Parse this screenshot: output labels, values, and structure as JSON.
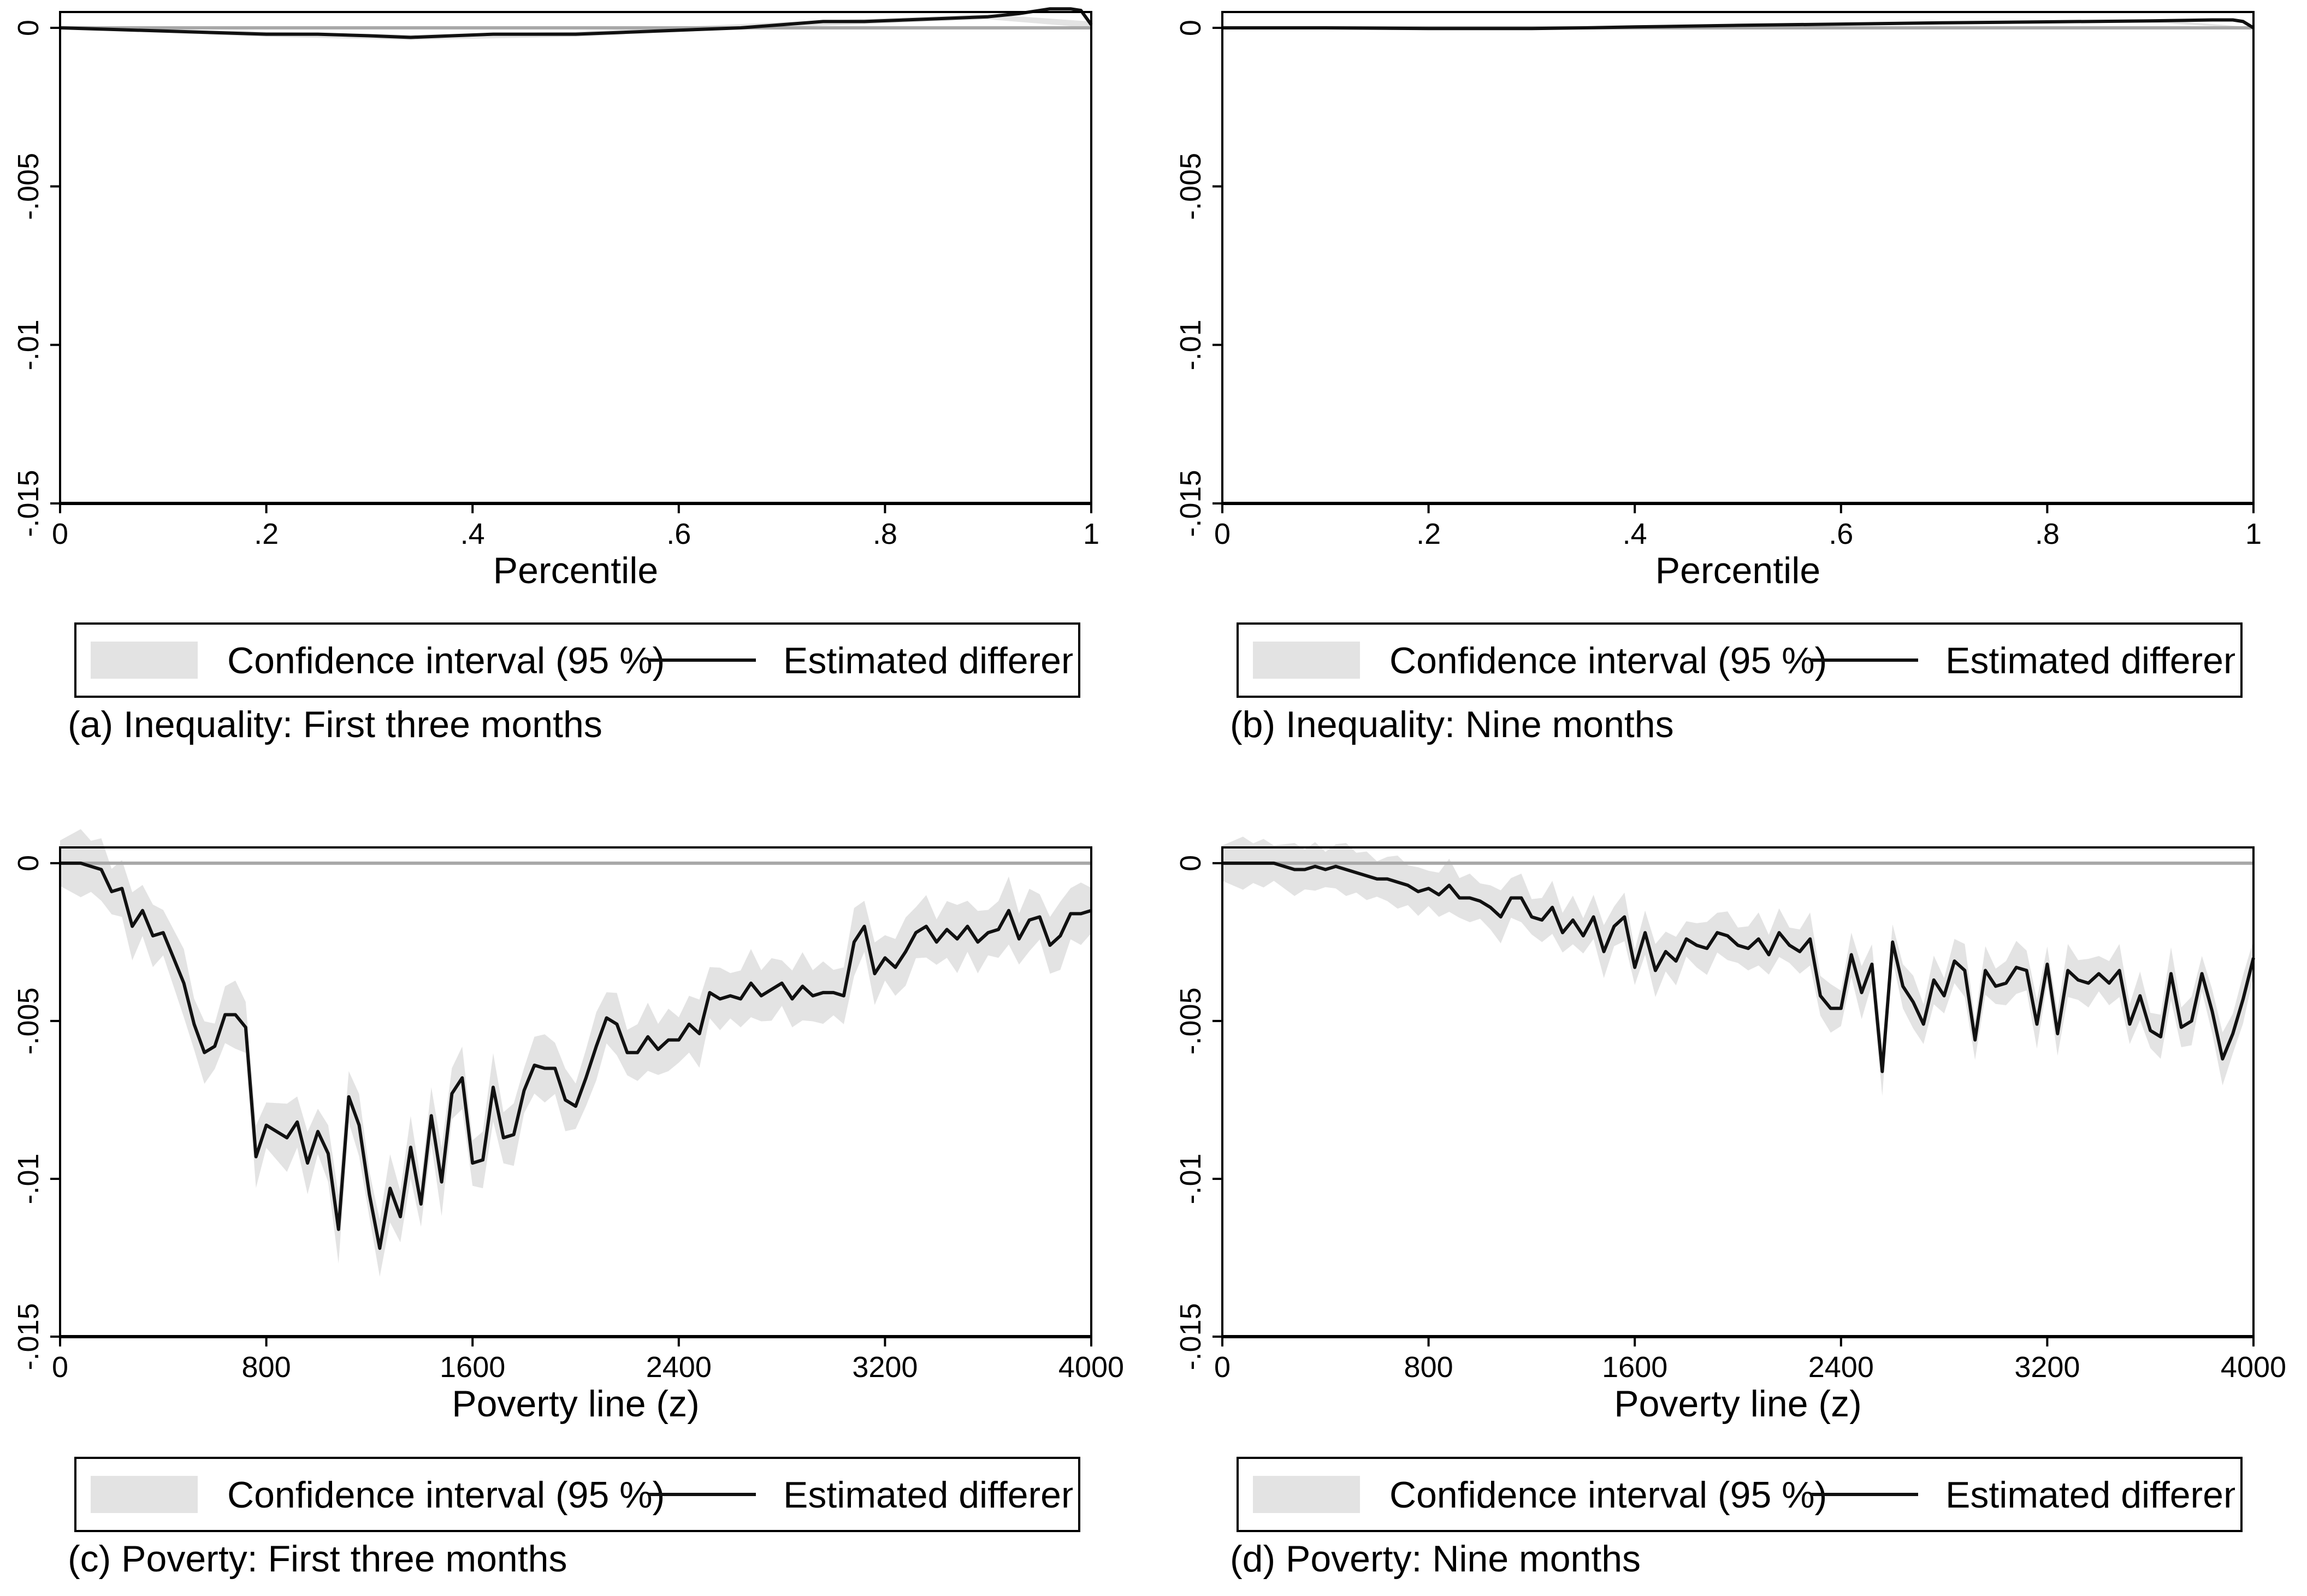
{
  "legend": {
    "ci_label": "Confidence interval (95 %)",
    "line_label": "Estimated difference"
  },
  "chart_data": [
    {
      "id": "a",
      "type": "line",
      "caption": "(a) Inequality: First three months",
      "xlabel": "Percentile",
      "ylabel": "",
      "xlim": [
        0,
        1
      ],
      "ylim": [
        -0.015,
        0.0005
      ],
      "x_ticks": [
        0,
        0.2,
        0.4,
        0.6,
        0.8,
        1
      ],
      "x_tick_labels": [
        "0",
        ".2",
        ".4",
        ".6",
        ".8",
        "1"
      ],
      "y_ticks": [
        0,
        -0.005,
        -0.01,
        -0.015
      ],
      "y_tick_labels": [
        "0",
        "-.005",
        "-.01",
        "-.015"
      ],
      "reference_line": 0,
      "series": [
        {
          "role": "estimate",
          "x": [
            0,
            0.05,
            0.1,
            0.15,
            0.2,
            0.25,
            0.3,
            0.34,
            0.38,
            0.42,
            0.46,
            0.5,
            0.54,
            0.58,
            0.62,
            0.66,
            0.7,
            0.74,
            0.78,
            0.82,
            0.86,
            0.9,
            0.93,
            0.96,
            0.98,
            0.99,
            1.0
          ],
          "y": [
            0,
            -5e-05,
            -0.0001,
            -0.00015,
            -0.0002,
            -0.0002,
            -0.00025,
            -0.0003,
            -0.00025,
            -0.0002,
            -0.0002,
            -0.0002,
            -0.00015,
            -0.0001,
            -5e-05,
            0,
            0.0001,
            0.0002,
            0.0002,
            0.00025,
            0.0003,
            0.00035,
            0.00045,
            0.0006,
            0.0006,
            0.00055,
            0.0001
          ]
        }
      ],
      "ci": {
        "x": [
          0,
          0.2,
          0.34,
          0.5,
          0.7,
          0.9,
          1.0
        ],
        "lower": [
          -3e-05,
          -0.00028,
          -0.00038,
          -0.00028,
          2e-05,
          0.00027,
          0.0
        ],
        "upper": [
          3e-05,
          -0.00012,
          -0.00022,
          -0.00012,
          0.00018,
          0.00043,
          0.0002
        ]
      }
    },
    {
      "id": "b",
      "type": "line",
      "caption": "(b) Inequality: Nine months",
      "xlabel": "Percentile",
      "ylabel": "",
      "xlim": [
        0,
        1
      ],
      "ylim": [
        -0.015,
        0.0005
      ],
      "x_ticks": [
        0,
        0.2,
        0.4,
        0.6,
        0.8,
        1
      ],
      "x_tick_labels": [
        "0",
        ".2",
        ".4",
        ".6",
        ".8",
        "1"
      ],
      "y_ticks": [
        0,
        -0.005,
        -0.01,
        -0.015
      ],
      "y_tick_labels": [
        "0",
        "-.005",
        "-.01",
        "-.015"
      ],
      "reference_line": 0,
      "series": [
        {
          "role": "estimate",
          "x": [
            0,
            0.1,
            0.2,
            0.3,
            0.35,
            0.4,
            0.5,
            0.6,
            0.7,
            0.8,
            0.9,
            0.96,
            0.98,
            0.99,
            1.0
          ],
          "y": [
            0,
            0,
            -2e-05,
            -2e-05,
            0,
            3e-05,
            8e-05,
            0.00012,
            0.00016,
            0.00019,
            0.00022,
            0.00025,
            0.00025,
            0.0002,
            0.0
          ]
        }
      ],
      "ci": {
        "x": [
          0,
          0.3,
          0.6,
          0.9,
          1.0
        ],
        "lower": [
          -2e-05,
          -5e-05,
          8e-05,
          0.00017,
          -2e-05
        ],
        "upper": [
          2e-05,
          1e-05,
          0.00016,
          0.00027,
          2e-05
        ]
      }
    },
    {
      "id": "c",
      "type": "line",
      "caption": "(c) Poverty: First three months",
      "xlabel": "Poverty line (z)",
      "ylabel": "",
      "xlim": [
        0,
        4000
      ],
      "ylim": [
        -0.015,
        0.0005
      ],
      "x_ticks": [
        0,
        800,
        1600,
        2400,
        3200,
        4000
      ],
      "x_tick_labels": [
        "0",
        "800",
        "1600",
        "2400",
        "3200",
        "4000"
      ],
      "y_ticks": [
        0,
        -0.005,
        -0.01,
        -0.015
      ],
      "y_tick_labels": [
        "0",
        "-.005",
        "-.01",
        "-.015"
      ],
      "reference_line": 0,
      "series": [
        {
          "role": "estimate",
          "x": [
            0,
            40,
            80,
            120,
            160,
            200,
            240,
            280,
            320,
            360,
            400,
            440,
            480,
            520,
            560,
            600,
            640,
            680,
            720,
            760,
            800,
            840,
            880,
            920,
            960,
            1000,
            1040,
            1080,
            1120,
            1160,
            1200,
            1240,
            1280,
            1320,
            1360,
            1400,
            1440,
            1480,
            1520,
            1560,
            1600,
            1640,
            1680,
            1720,
            1760,
            1800,
            1840,
            1880,
            1920,
            1960,
            2000,
            2040,
            2080,
            2120,
            2160,
            2200,
            2240,
            2280,
            2320,
            2360,
            2400,
            2440,
            2480,
            2520,
            2560,
            2600,
            2640,
            2680,
            2720,
            2760,
            2800,
            2840,
            2880,
            2920,
            2960,
            3000,
            3040,
            3080,
            3120,
            3160,
            3200,
            3240,
            3280,
            3320,
            3360,
            3400,
            3440,
            3480,
            3520,
            3560,
            3600,
            3640,
            3680,
            3720,
            3760,
            3800,
            3840,
            3880,
            3920,
            3960,
            4000
          ],
          "y": [
            0,
            0,
            0,
            -0.0001,
            -0.0002,
            -0.0009,
            -0.0008,
            -0.002,
            -0.0015,
            -0.0023,
            -0.0022,
            -0.003,
            -0.0038,
            -0.0051,
            -0.006,
            -0.0058,
            -0.0048,
            -0.0048,
            -0.0052,
            -0.0093,
            -0.0083,
            -0.0085,
            -0.0087,
            -0.0082,
            -0.0095,
            -0.0085,
            -0.0092,
            -0.0116,
            -0.0074,
            -0.0083,
            -0.0105,
            -0.0122,
            -0.0103,
            -0.0112,
            -0.009,
            -0.0108,
            -0.008,
            -0.0101,
            -0.0073,
            -0.0068,
            -0.0095,
            -0.0094,
            -0.0071,
            -0.0087,
            -0.0086,
            -0.0072,
            -0.0064,
            -0.0065,
            -0.0065,
            -0.0075,
            -0.0077,
            -0.0068,
            -0.0058,
            -0.0049,
            -0.0051,
            -0.006,
            -0.006,
            -0.0055,
            -0.0059,
            -0.0056,
            -0.0056,
            -0.0051,
            -0.0054,
            -0.0041,
            -0.0043,
            -0.0042,
            -0.0043,
            -0.0038,
            -0.0042,
            -0.004,
            -0.0038,
            -0.0043,
            -0.0039,
            -0.0042,
            -0.0041,
            -0.0041,
            -0.0042,
            -0.0025,
            -0.002,
            -0.0035,
            -0.003,
            -0.0033,
            -0.0028,
            -0.0022,
            -0.002,
            -0.0025,
            -0.0021,
            -0.0024,
            -0.002,
            -0.0025,
            -0.0022,
            -0.0021,
            -0.0015,
            -0.0024,
            -0.0018,
            -0.0017,
            -0.0026,
            -0.0023,
            -0.0016,
            -0.0016,
            -0.0015
          ]
        }
      ],
      "ci_halfwidth": 0.0009
    },
    {
      "id": "d",
      "type": "line",
      "caption": "(d) Poverty: Nine months",
      "xlabel": "Poverty line (z)",
      "ylabel": "",
      "xlim": [
        0,
        4000
      ],
      "ylim": [
        -0.015,
        0.0005
      ],
      "x_ticks": [
        0,
        800,
        1600,
        2400,
        3200,
        4000
      ],
      "x_tick_labels": [
        "0",
        "800",
        "1600",
        "2400",
        "3200",
        "4000"
      ],
      "y_ticks": [
        0,
        -0.005,
        -0.01,
        -0.015
      ],
      "y_tick_labels": [
        "0",
        "-.005",
        "-.01",
        "-.015"
      ],
      "reference_line": 0,
      "series": [
        {
          "role": "estimate",
          "x": [
            0,
            40,
            80,
            120,
            160,
            200,
            240,
            280,
            320,
            360,
            400,
            440,
            480,
            520,
            560,
            600,
            640,
            680,
            720,
            760,
            800,
            840,
            880,
            920,
            960,
            1000,
            1040,
            1080,
            1120,
            1160,
            1200,
            1240,
            1280,
            1320,
            1360,
            1400,
            1440,
            1480,
            1520,
            1560,
            1600,
            1640,
            1680,
            1720,
            1760,
            1800,
            1840,
            1880,
            1920,
            1960,
            2000,
            2040,
            2080,
            2120,
            2160,
            2200,
            2240,
            2280,
            2320,
            2360,
            2400,
            2440,
            2480,
            2520,
            2560,
            2600,
            2640,
            2680,
            2720,
            2760,
            2800,
            2840,
            2880,
            2920,
            2960,
            3000,
            3040,
            3080,
            3120,
            3160,
            3200,
            3240,
            3280,
            3320,
            3360,
            3400,
            3440,
            3480,
            3520,
            3560,
            3600,
            3640,
            3680,
            3720,
            3760,
            3800,
            3840,
            3880,
            3920,
            3960,
            4000
          ],
          "y": [
            0,
            0,
            0,
            0,
            0,
            0,
            -0.0001,
            -0.0002,
            -0.0002,
            -0.0001,
            -0.0002,
            -0.0001,
            -0.0002,
            -0.0003,
            -0.0004,
            -0.0005,
            -0.0005,
            -0.0006,
            -0.0007,
            -0.0009,
            -0.0008,
            -0.001,
            -0.0007,
            -0.0011,
            -0.0011,
            -0.0012,
            -0.0014,
            -0.0017,
            -0.0011,
            -0.0011,
            -0.0017,
            -0.0018,
            -0.0014,
            -0.0022,
            -0.0018,
            -0.0023,
            -0.0017,
            -0.0028,
            -0.002,
            -0.0017,
            -0.0033,
            -0.0022,
            -0.0034,
            -0.0028,
            -0.0031,
            -0.0024,
            -0.0026,
            -0.0027,
            -0.0022,
            -0.0023,
            -0.0026,
            -0.0027,
            -0.0024,
            -0.0029,
            -0.0022,
            -0.0026,
            -0.0028,
            -0.0024,
            -0.0042,
            -0.0046,
            -0.0046,
            -0.0029,
            -0.0041,
            -0.0032,
            -0.0066,
            -0.0025,
            -0.0039,
            -0.0044,
            -0.0051,
            -0.0037,
            -0.0042,
            -0.0031,
            -0.0034,
            -0.0056,
            -0.0034,
            -0.0039,
            -0.0038,
            -0.0033,
            -0.0034,
            -0.0051,
            -0.0032,
            -0.0054,
            -0.0034,
            -0.0037,
            -0.0038,
            -0.0035,
            -0.0038,
            -0.0034,
            -0.0051,
            -0.0042,
            -0.0053,
            -0.0055,
            -0.0035,
            -0.0052,
            -0.005,
            -0.0035,
            -0.0047,
            -0.0062,
            -0.0054,
            -0.0043,
            -0.003
          ]
        }
      ],
      "ci_halfwidth": 0.0007
    }
  ]
}
